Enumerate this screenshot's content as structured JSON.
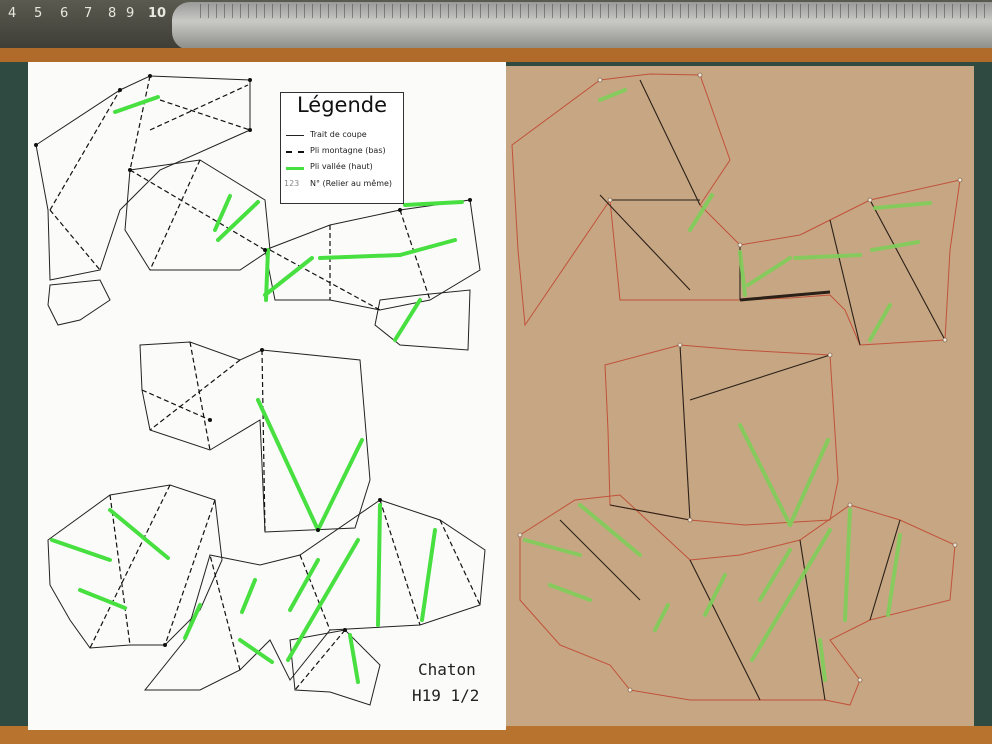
{
  "ruler": {
    "numbers": [
      "4",
      "5",
      "6",
      "7",
      "8",
      "9",
      "10"
    ]
  },
  "legend": {
    "title": "Légende",
    "cut_line": "Trait de coupe",
    "mountain_fold": "Pli montagne (bas)",
    "valley_fold": "Pli vallée (haut)",
    "number_sample": "123",
    "number_note": "N° (Relier au même)"
  },
  "signature": {
    "line1": "Chaton",
    "line2": "H19 1/2"
  },
  "colors": {
    "valley_green": "#48e040",
    "cut_red": "#c0523a",
    "paper": "#fbfbfa",
    "cardboard": "#c7a683",
    "mat": "#2f4a40"
  }
}
